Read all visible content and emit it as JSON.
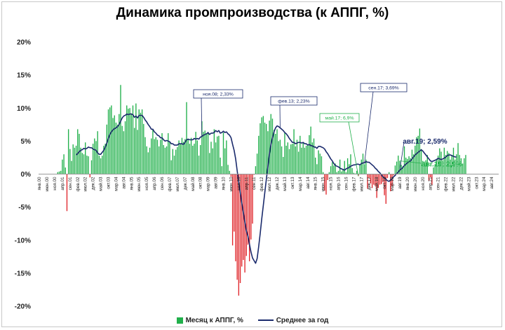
{
  "chart_data": {
    "type": "bar",
    "title": "Динамика промпроизводства (к АППГ, %)",
    "ylim": [
      -20,
      20
    ],
    "yticks": [
      {
        "value": 20,
        "label": "20%"
      },
      {
        "value": 15,
        "label": "15%"
      },
      {
        "value": 10,
        "label": "10%"
      },
      {
        "value": 5,
        "label": "5%"
      },
      {
        "value": 0,
        "label": "0%"
      },
      {
        "value": -5,
        "label": "-5%"
      },
      {
        "value": -10,
        "label": "-10%"
      },
      {
        "value": -15,
        "label": "-15%"
      },
      {
        "value": -20,
        "label": "-20%"
      }
    ],
    "x_labels": [
      "янв.00",
      "июн.00",
      "ноя.00",
      "апр.01",
      "сен.01",
      "фев.02",
      "июл.02",
      "дек.02",
      "май.03",
      "окт.03",
      "мар.04",
      "авг.04",
      "янв.05",
      "июн.05",
      "ноя.05",
      "апр.06",
      "сен.06",
      "фев.07",
      "июл.07",
      "дек.07",
      "май.08",
      "окт.08",
      "мар.09",
      "авг.09",
      "янв.10",
      "июн.10",
      "ноя.10",
      "апр.11",
      "сен.11",
      "фев.12",
      "июл.12",
      "дек.12",
      "май.13",
      "окт.13",
      "мар.14",
      "авг.14",
      "янв.15",
      "июн.15",
      "ноя.15",
      "апр.16",
      "сен.16",
      "фев.17",
      "июл.17",
      "дек.17",
      "май.18",
      "окт.18",
      "мар.19",
      "авг.19",
      "янв.20",
      "июн.20",
      "ноя.20",
      "апр.21",
      "сен.21",
      "фев.22",
      "июл.22",
      "дек.22",
      "май.23",
      "окт.23",
      "мар.24",
      "авг.24"
    ],
    "legend_position": "bottom",
    "grid": false,
    "colors": {
      "positive_bar": "#21b04b",
      "negative_bar": "#e0262b",
      "average_line": "#1a2a6c",
      "green_annotation": "#21b04b"
    },
    "series": [
      {
        "name": "Месяц к АППГ, %",
        "type": "bar",
        "start": "янв.00",
        "values": [
          0.0,
          0.0,
          0.0,
          0.0,
          0.0,
          0.0,
          0.0,
          0.0,
          0.0,
          0.0,
          0.0,
          0.0,
          0.3,
          0.4,
          0.5,
          2.2,
          3.0,
          1.0,
          -5.6,
          6.8,
          3.8,
          2.0,
          4.5,
          4.0,
          4.3,
          6.8,
          6.1,
          4.0,
          3.2,
          3.0,
          4.8,
          2.8,
          2.7,
          -0.5,
          2.1,
          4.6,
          5.4,
          5.0,
          6.5,
          2.8,
          2.4,
          2.8,
          4.3,
          4.6,
          7.5,
          9.8,
          10.1,
          10.4,
          8.5,
          8.9,
          7.8,
          7.5,
          9.1,
          13.5,
          7.3,
          6.5,
          8.0,
          10.4,
          9.9,
          10.0,
          9.2,
          10.4,
          7.0,
          10.7,
          6.7,
          9.8,
          9.3,
          9.8,
          7.6,
          5.6,
          4.2,
          3.3,
          4.0,
          5.4,
          6.8,
          5.3,
          5.6,
          5.2,
          4.2,
          5.2,
          6.2,
          4.4,
          4.0,
          4.2,
          6.2,
          4.9,
          2.1,
          3.8,
          2.8,
          3.7,
          4.1,
          5.1,
          4.6,
          5.5,
          4.9,
          5.3,
          10.9,
          5.3,
          4.6,
          5.5,
          4.3,
          4.6,
          6.4,
          5.1,
          2.8,
          4.4,
          8.0,
          6.4,
          6.6,
          6.2,
          6.2,
          3.2,
          4.9,
          3.9,
          6.8,
          4.8,
          5.7,
          5.8,
          2.5,
          1.2,
          6.3,
          3.9,
          5.1,
          1.4,
          0.5,
          -0.4,
          -10.8,
          -8.7,
          -13.2,
          -16.0,
          -18.4,
          -16.5,
          -14.0,
          -13.0,
          -14.9,
          -12.4,
          -10.7,
          -13.2,
          -9.9,
          -7.5,
          -0.1,
          1.2,
          3.1,
          5.8,
          7.7,
          8.6,
          8.8,
          7.8,
          7.6,
          6.5,
          8.1,
          9.1,
          8.4,
          6.7,
          6.1,
          6.8,
          5.0,
          5.2,
          4.2,
          2.6,
          6.2,
          4.3,
          4.8,
          3.8,
          4.5,
          4.6,
          6.8,
          4.2,
          5.2,
          3.4,
          5.8,
          4.0,
          4.8,
          4.0,
          4.3,
          4.5,
          5.9,
          7.2,
          4.8,
          5.4,
          2.5,
          1.5,
          3.6,
          3.1,
          2.7,
          0.3,
          -2.5,
          -3.1,
          -0.9,
          0.3,
          1.2,
          1.8,
          1.3,
          1.6,
          0.3,
          0.5,
          2.2,
          0.4,
          0.8,
          2.0,
          0.3,
          2.4,
          1.5,
          3.0,
          0.9,
          0.2,
          0.1,
          0.5,
          -0.3,
          1.4,
          2.2,
          3.1,
          1.5,
          2.2,
          -2.2,
          -0.6,
          -1.4,
          -2.1,
          -1.6,
          -1.8,
          -3.6,
          -2.1,
          -1.6,
          -1.5,
          -1.2,
          -3.2,
          -4.5,
          -0.6,
          0.3,
          -2.6,
          -1.8,
          -0.2,
          1.3,
          1.9,
          2.8,
          2.0,
          1.4,
          1.2,
          4.2,
          2.5,
          2.3,
          2.7,
          2.4,
          3.7,
          3.0,
          4.3,
          5.6,
          5.8,
          6.9,
          3.8,
          2.0,
          1.9,
          2.1,
          2.9,
          -1.0,
          -0.5,
          -1.6,
          1.0,
          1.5,
          2.3,
          2.8,
          3.9,
          3.4,
          2.1,
          4.0,
          2.9,
          3.5,
          3.2,
          2.2,
          2.9,
          4.0,
          2.2,
          3.0,
          4.7,
          2.9,
          2.4,
          1.6,
          2.4,
          2.9,
          0.0,
          0.0,
          0.0,
          0.0,
          0.0,
          0.0,
          0.0,
          0.0,
          0.0,
          0.0,
          0.0,
          0.0,
          0.0,
          0.0,
          0.0,
          0.0,
          0.0,
          0.0,
          0.0,
          0.0,
          0.0,
          0.0,
          0.0,
          0.0,
          0.0,
          0.0,
          0.0,
          0.0,
          0.0,
          0.0,
          0.0,
          0.0,
          0.0,
          0.0,
          0.0,
          0.0,
          0.0,
          0.0,
          0.0,
          0.0,
          0.0,
          0.0,
          0.0,
          0.0,
          0.0,
          0.0,
          0.0,
          0.0,
          0.0,
          0.0,
          0.0,
          0.0,
          0.0,
          0.0,
          0.0,
          0.0,
          0.0,
          0.0,
          0.0,
          0.0
        ]
      },
      {
        "name": "Среднее за год",
        "type": "line",
        "start": "янв.00",
        "values": [
          null,
          null,
          null,
          null,
          null,
          null,
          null,
          null,
          null,
          null,
          null,
          null,
          null,
          null,
          null,
          null,
          null,
          null,
          null,
          null,
          null,
          null,
          null,
          null,
          2.9,
          3.1,
          3.4,
          3.6,
          3.7,
          3.9,
          3.8,
          3.9,
          4.1,
          4.0,
          4.0,
          3.8,
          3.7,
          3.6,
          3.2,
          3.0,
          3.0,
          3.3,
          3.6,
          4.1,
          4.7,
          5.4,
          6.0,
          6.4,
          6.7,
          6.9,
          7.0,
          7.2,
          7.5,
          8.0,
          8.5,
          8.8,
          8.9,
          9.1,
          9.0,
          9.1,
          9.1,
          9.0,
          8.6,
          8.8,
          8.5,
          8.9,
          8.9,
          8.9,
          8.6,
          8.2,
          7.9,
          7.5,
          7.2,
          6.8,
          6.8,
          6.4,
          6.2,
          5.9,
          5.8,
          5.5,
          5.5,
          5.2,
          5.0,
          5.1,
          5.0,
          4.9,
          4.6,
          4.6,
          4.4,
          4.4,
          4.4,
          4.6,
          4.6,
          4.6,
          4.5,
          4.8,
          5.2,
          5.3,
          5.2,
          5.2,
          5.2,
          5.4,
          5.3,
          5.4,
          5.3,
          5.6,
          5.7,
          5.9,
          6.0,
          6.1,
          6.3,
          6.0,
          6.2,
          6.2,
          6.3,
          6.6,
          6.4,
          6.6,
          6.2,
          6.3,
          6.5,
          6.3,
          6.4,
          6.1,
          5.9,
          5.5,
          4.5,
          3.6,
          2.3,
          0.5,
          -1.2,
          -2.8,
          -4.4,
          -5.8,
          -7.3,
          -8.6,
          -9.4,
          -10.6,
          -11.8,
          -12.7,
          -13.1,
          -13.5,
          -12.8,
          -11.0,
          -9.0,
          -6.8,
          -4.8,
          -2.8,
          -0.8,
          1.1,
          3.0,
          4.5,
          5.5,
          6.4,
          7.0,
          7.3,
          7.2,
          7.0,
          6.8,
          6.6,
          6.3,
          6.1,
          5.8,
          5.4,
          5.1,
          4.8,
          4.8,
          4.6,
          4.7,
          4.8,
          4.8,
          4.7,
          4.8,
          4.6,
          4.6,
          4.4,
          4.5,
          4.3,
          4.3,
          4.1,
          4.1,
          3.9,
          4.2,
          4.2,
          4.1,
          4.0,
          3.8,
          3.4,
          3.1,
          2.7,
          2.3,
          2.0,
          1.6,
          1.3,
          1.2,
          1.1,
          0.9,
          0.8,
          0.7,
          0.6,
          0.8,
          0.9,
          1.0,
          1.2,
          1.3,
          1.4,
          1.4,
          1.5,
          1.5,
          1.4,
          1.6,
          1.7,
          1.7,
          1.9,
          1.8,
          1.8,
          1.6,
          1.4,
          1.2,
          0.9,
          0.7,
          0.4,
          0.2,
          -0.1,
          -0.4,
          -0.6,
          -0.8,
          -1.0,
          -1.1,
          -0.9,
          -0.7,
          -0.4,
          -0.2,
          0.1,
          0.3,
          0.6,
          0.8,
          1.0,
          1.3,
          1.5,
          1.7,
          1.9,
          2.0,
          2.3,
          2.6,
          2.9,
          3.1,
          3.3,
          3.5,
          3.69,
          3.5,
          3.2,
          2.9,
          2.6,
          2.3,
          2.0,
          1.9,
          2.0,
          2.1,
          2.2,
          2.4,
          2.3,
          2.2,
          2.3,
          2.4,
          2.6,
          2.8,
          2.9,
          2.9,
          2.8,
          2.7,
          2.6,
          2.59,
          null,
          null,
          null,
          null,
          null,
          null,
          null,
          null,
          null,
          null,
          null,
          null,
          null,
          null,
          null,
          null,
          null,
          null,
          null,
          null,
          null,
          null,
          null,
          null,
          null,
          null,
          null,
          null,
          null,
          null,
          null,
          null,
          null,
          null,
          null,
          null,
          null,
          null,
          null,
          null,
          null,
          null,
          null,
          null,
          null,
          null,
          null,
          null,
          null,
          null,
          null,
          null,
          null,
          null,
          null,
          null,
          null,
          null,
          null,
          null,
          null
        ]
      }
    ],
    "annotations": [
      {
        "text": "ноя.08; 2,33%",
        "style": "navy-box",
        "month": 106
      },
      {
        "text": "фев.13; 2,23%",
        "style": "navy-box",
        "month": 157
      },
      {
        "text": "сен.17; 3,69%",
        "style": "navy-box",
        "month": 212
      },
      {
        "text": "май.17; 6,9%",
        "style": "green-box",
        "month": 208
      },
      {
        "text": "авг.19; 2,59%",
        "style": "navy-bold",
        "month": 235
      },
      {
        "text": "авг.19; 2,9%",
        "style": "green-bold",
        "month": 235
      }
    ]
  }
}
